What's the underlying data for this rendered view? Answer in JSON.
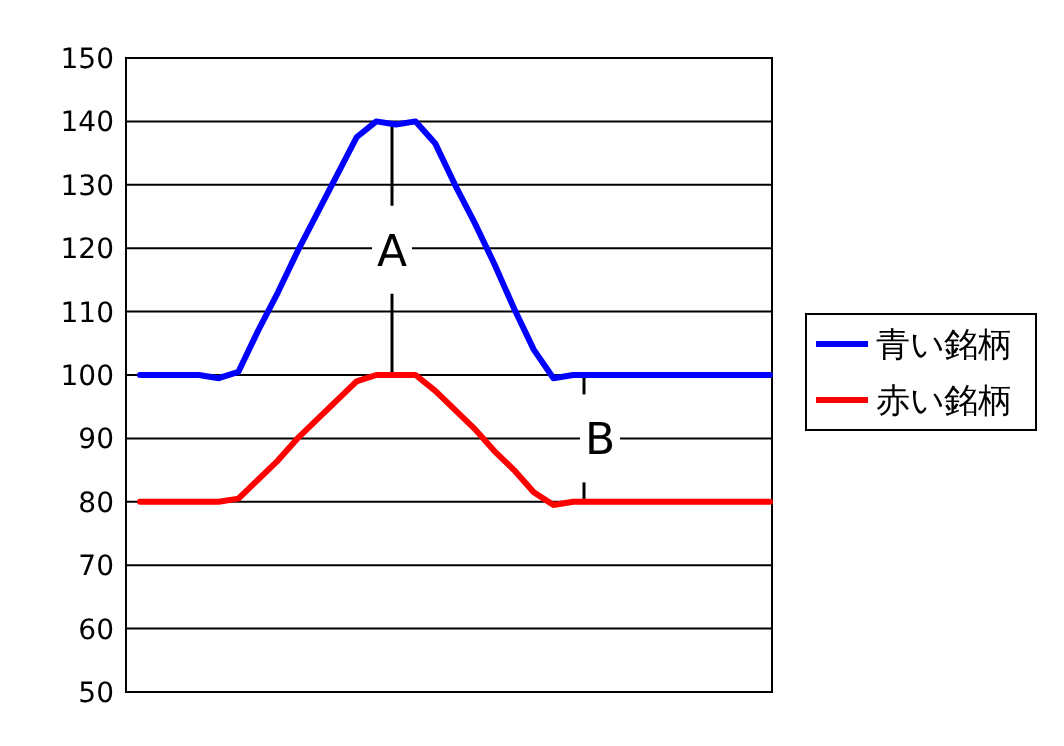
{
  "chart_data": {
    "type": "line",
    "categories": [
      null,
      null,
      null,
      null,
      null,
      null,
      null,
      null,
      null,
      null,
      null,
      null,
      null,
      null,
      null,
      null,
      null,
      null,
      null,
      null,
      null,
      null,
      null,
      null,
      null,
      null,
      null,
      null,
      null,
      null,
      null,
      null,
      null
    ],
    "series": [
      {
        "name": "青い銘柄",
        "color": "#0000ff",
        "values": [
          100,
          100,
          100,
          100,
          99.5,
          100.5,
          107,
          113,
          119.5,
          125.5,
          131.5,
          137.5,
          140,
          139.5,
          140,
          136.5,
          130,
          124,
          117.5,
          110.5,
          104,
          99.5,
          100,
          100,
          100,
          100,
          100,
          100,
          100,
          100,
          100,
          100,
          100
        ]
      },
      {
        "name": "赤い銘柄",
        "color": "#ff0000",
        "values": [
          80,
          80,
          80,
          80,
          80,
          80.5,
          83.5,
          86.5,
          90,
          93,
          96,
          99,
          100,
          100,
          100,
          97.5,
          94.5,
          91.5,
          88,
          85,
          81.5,
          79.5,
          80,
          80,
          80,
          80,
          80,
          80,
          80,
          80,
          80,
          80,
          80
        ]
      }
    ],
    "annotations": [
      "A",
      "B"
    ],
    "ylim": [
      50,
      150
    ],
    "yticks": [
      50,
      60,
      70,
      80,
      90,
      100,
      110,
      120,
      130,
      140,
      150
    ],
    "grid": "y",
    "legend": "right",
    "marker": "none",
    "line_style": "solid"
  }
}
